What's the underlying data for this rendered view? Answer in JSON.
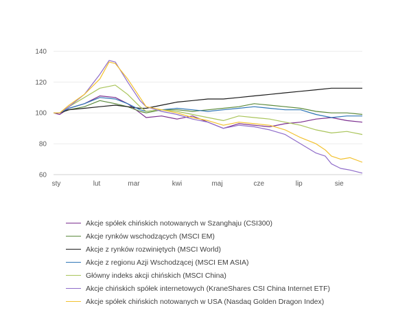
{
  "chart_data": {
    "type": "line",
    "ylim": [
      60,
      150
    ],
    "yticks": [
      60,
      80,
      100,
      120,
      140
    ],
    "grid": true,
    "legend_position": "bottom",
    "x_labels": [
      "sty",
      "lut",
      "mar",
      "kwi",
      "maj",
      "cze",
      "lip",
      "sie"
    ],
    "x_label_positions": [
      0,
      0.14,
      0.26,
      0.4,
      0.53,
      0.665,
      0.795,
      0.925
    ],
    "series": [
      {
        "name": "Akcje spółek chińskich notowanych w Szanghaju (CSI300)",
        "color": "#7B2D8E",
        "x": [
          0,
          0.02,
          0.05,
          0.1,
          0.15,
          0.2,
          0.24,
          0.28,
          0.3,
          0.35,
          0.4,
          0.45,
          0.5,
          0.55,
          0.6,
          0.65,
          0.7,
          0.75,
          0.8,
          0.85,
          0.9,
          0.95,
          1
        ],
        "values": [
          100,
          99,
          103,
          106,
          111,
          110,
          106,
          100,
          97,
          98,
          96,
          98,
          94,
          90,
          93,
          92,
          91,
          93,
          94,
          96,
          97,
          95,
          94
        ]
      },
      {
        "name": "Akcje rynków wschodzących (MSCI EM)",
        "color": "#5B8A3C",
        "x": [
          0,
          0.02,
          0.05,
          0.1,
          0.15,
          0.2,
          0.24,
          0.28,
          0.3,
          0.35,
          0.4,
          0.45,
          0.5,
          0.55,
          0.6,
          0.65,
          0.7,
          0.75,
          0.8,
          0.85,
          0.9,
          0.95,
          1
        ],
        "values": [
          100,
          100,
          102,
          104,
          108,
          106,
          104,
          101,
          100,
          102,
          102,
          101,
          102,
          103,
          104,
          106,
          105,
          104,
          103,
          101,
          100,
          100,
          99
        ]
      },
      {
        "name": "Akcje z rynków rozwiniętych (MSCI World)",
        "color": "#1A1A1A",
        "x": [
          0,
          0.02,
          0.05,
          0.1,
          0.15,
          0.2,
          0.24,
          0.28,
          0.3,
          0.35,
          0.4,
          0.45,
          0.5,
          0.55,
          0.6,
          0.65,
          0.7,
          0.75,
          0.8,
          0.85,
          0.9,
          0.95,
          1
        ],
        "values": [
          100,
          100,
          102,
          103,
          104,
          105,
          104,
          103,
          103,
          105,
          107,
          108,
          109,
          109,
          110,
          111,
          112,
          113,
          114,
          115,
          116,
          116,
          116
        ]
      },
      {
        "name": "Akcje z regionu Azji Wschodzącej (MSCI EM ASIA)",
        "color": "#2E75B6",
        "x": [
          0,
          0.02,
          0.05,
          0.1,
          0.15,
          0.2,
          0.24,
          0.28,
          0.3,
          0.35,
          0.4,
          0.45,
          0.5,
          0.55,
          0.6,
          0.65,
          0.7,
          0.75,
          0.8,
          0.85,
          0.9,
          0.95,
          1
        ],
        "values": [
          100,
          100,
          103,
          106,
          110,
          109,
          106,
          102,
          101,
          102,
          103,
          102,
          101,
          102,
          103,
          104,
          103,
          102,
          102,
          99,
          97,
          98,
          98
        ]
      },
      {
        "name": "Główny indeks akcji chińskich (MSCI China)",
        "color": "#A9C45A",
        "x": [
          0,
          0.02,
          0.05,
          0.1,
          0.15,
          0.2,
          0.24,
          0.28,
          0.3,
          0.35,
          0.4,
          0.45,
          0.5,
          0.55,
          0.6,
          0.65,
          0.7,
          0.75,
          0.8,
          0.85,
          0.9,
          0.95,
          1
        ],
        "values": [
          100,
          100,
          104,
          110,
          116,
          118,
          112,
          104,
          101,
          102,
          101,
          99,
          97,
          95,
          98,
          97,
          96,
          94,
          92,
          89,
          87,
          88,
          86
        ]
      },
      {
        "name": "Akcje chińskich spółek internetowych (KraneShares CSI China Internet ETF)",
        "color": "#8E6BC9",
        "x": [
          0,
          0.02,
          0.05,
          0.1,
          0.15,
          0.18,
          0.2,
          0.24,
          0.28,
          0.3,
          0.35,
          0.4,
          0.45,
          0.5,
          0.55,
          0.6,
          0.65,
          0.7,
          0.75,
          0.8,
          0.85,
          0.88,
          0.9,
          0.93,
          0.96,
          1
        ],
        "values": [
          100,
          100,
          104,
          112,
          125,
          134,
          133,
          120,
          108,
          104,
          101,
          99,
          96,
          94,
          90,
          92,
          91,
          89,
          86,
          80,
          74,
          72,
          67,
          64,
          63,
          61
        ]
      },
      {
        "name": "Akcje spółek chińskich notowanych w USA (Nasdaq Golden Dragon Index)",
        "color": "#F2C12E",
        "x": [
          0,
          0.02,
          0.05,
          0.1,
          0.15,
          0.18,
          0.2,
          0.24,
          0.28,
          0.3,
          0.35,
          0.4,
          0.45,
          0.5,
          0.55,
          0.6,
          0.65,
          0.7,
          0.75,
          0.8,
          0.85,
          0.88,
          0.9,
          0.93,
          0.96,
          1
        ],
        "values": [
          100,
          100,
          105,
          112,
          122,
          133,
          132,
          122,
          110,
          104,
          102,
          100,
          97,
          95,
          92,
          94,
          93,
          92,
          89,
          84,
          80,
          76,
          72,
          70,
          71,
          68
        ]
      }
    ]
  }
}
